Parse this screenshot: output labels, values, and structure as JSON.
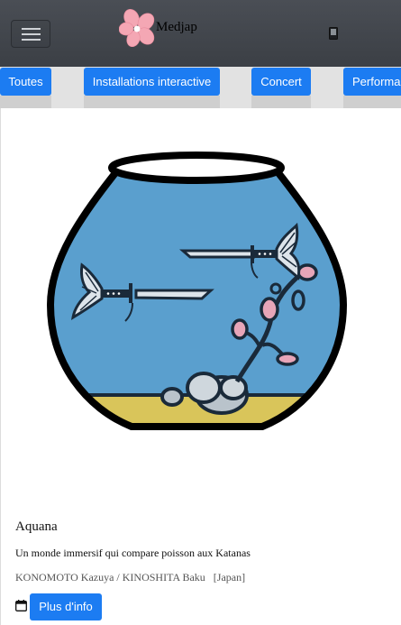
{
  "navbar": {
    "brand": "Medjap",
    "icons": {
      "menu": "hamburger-icon",
      "device": "mobile-device-icon",
      "logo": "cherry-blossom-logo"
    }
  },
  "filters": {
    "items": [
      {
        "label": "Toutes"
      },
      {
        "label": "Installations interactive"
      },
      {
        "label": "Concert"
      },
      {
        "label": "Performance"
      }
    ]
  },
  "event": {
    "title": "Aquana",
    "description": "Un monde immersif qui compare poisson aux Katanas",
    "artists": "KONOMOTO Kazuya / KINOSHITA Baku   [Japan]",
    "more_info_label": "Plus d'info",
    "icons": {
      "date": "calendar-icon",
      "image": "fishbowl-katana-illustration"
    }
  },
  "colors": {
    "navbar_bg": "#41454b",
    "button_blue": "#1c7cf2",
    "water": "#5a9fce",
    "sand": "#d9c55a"
  }
}
